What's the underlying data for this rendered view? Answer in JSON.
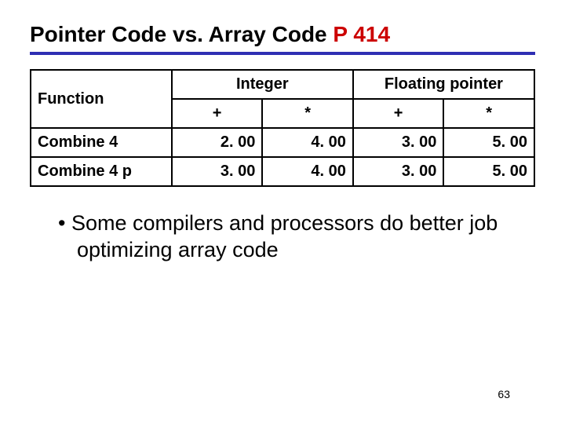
{
  "title_main": "Pointer Code vs. Array Code  ",
  "title_ref": "P 414",
  "table": {
    "header_function": "Function",
    "header_integer": "Integer",
    "header_floating": "Floating pointer",
    "op_plus_a": "+",
    "op_star_a": "*",
    "op_plus_b": "+",
    "op_star_b": "*",
    "rows": [
      {
        "fn": "Combine 4",
        "a": "2. 00",
        "b": "4. 00",
        "c": "3. 00",
        "d": "5. 00"
      },
      {
        "fn": "Combine 4 p",
        "a": "3. 00",
        "b": "4. 00",
        "c": "3. 00",
        "d": "5. 00"
      }
    ]
  },
  "bullet_text": "Some compilers and processors do better job optimizing array code",
  "page_number": "63",
  "col_widths": {
    "fn": "28%",
    "num": "18%"
  }
}
